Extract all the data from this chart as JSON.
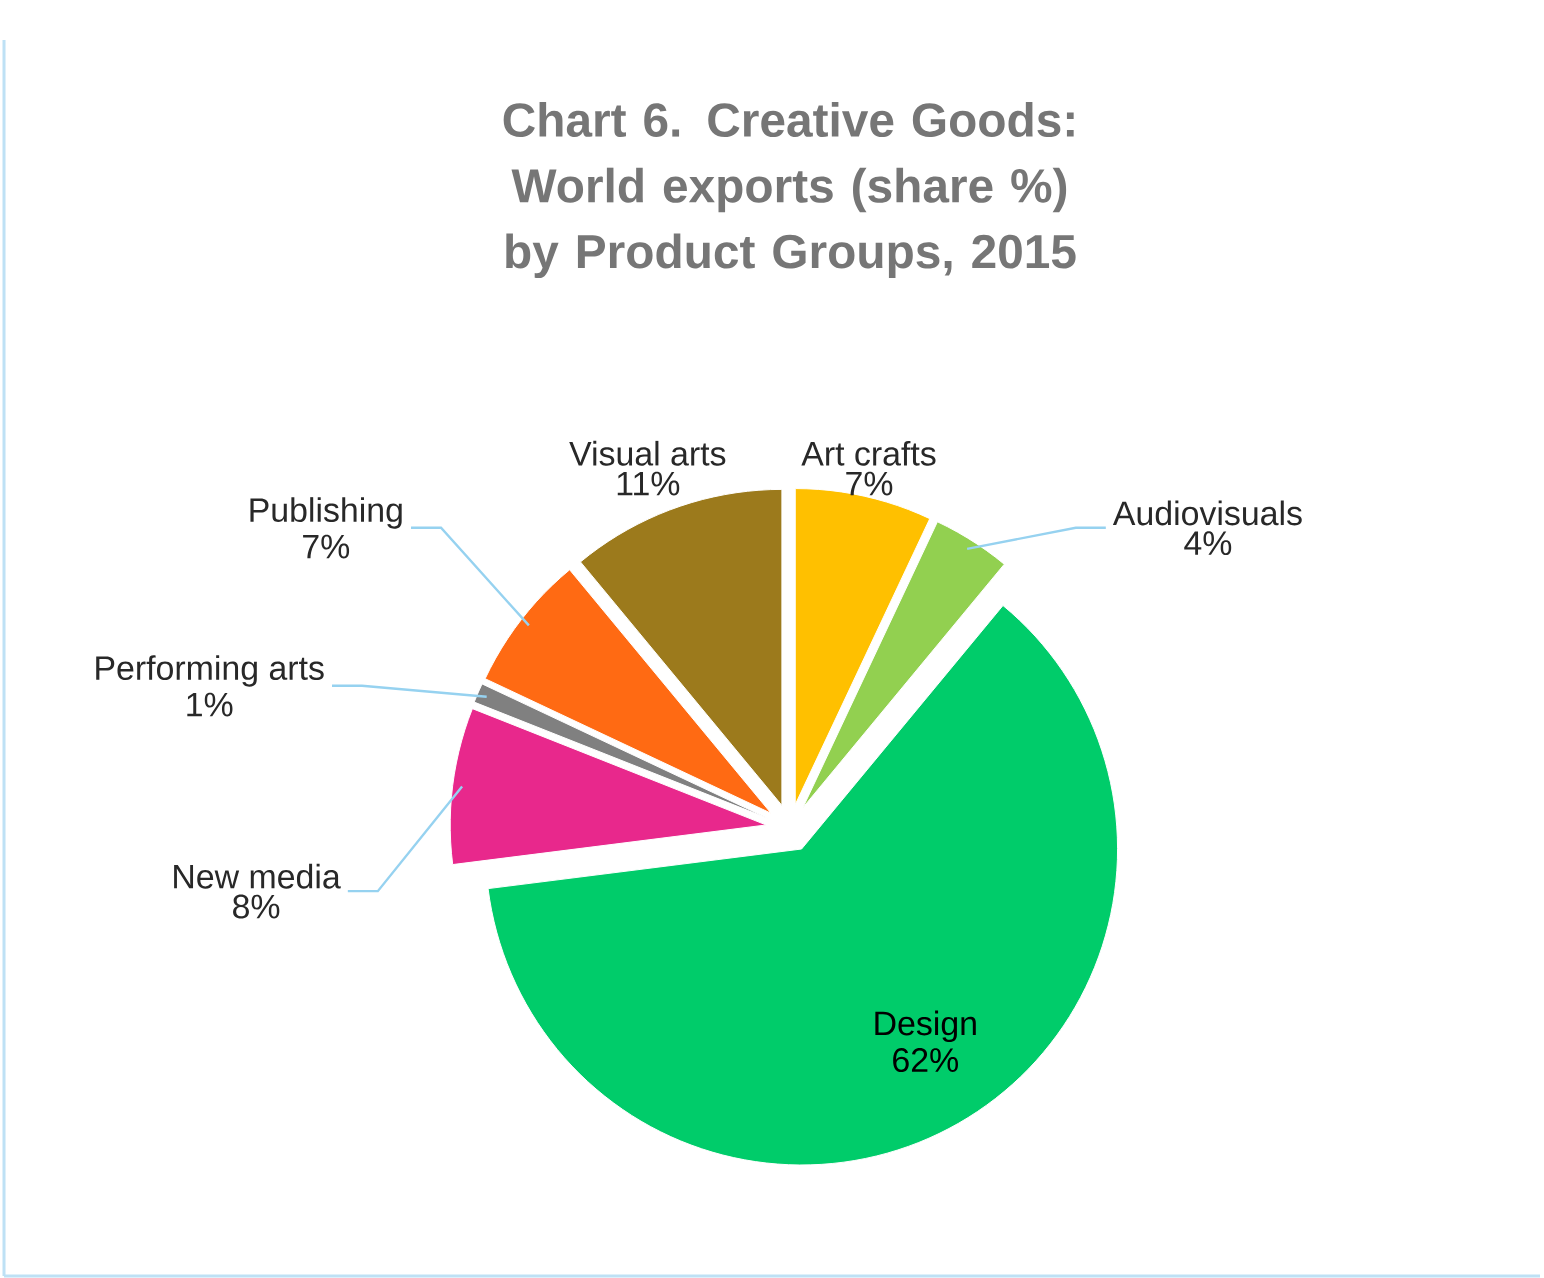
{
  "chart_data": {
    "type": "pie",
    "title": "Chart 6.  Creative Goods: World exports (share %) by Product Groups, 2015",
    "categories": [
      "Art crafts",
      "Audiovisuals",
      "Design",
      "New media",
      "Performing arts",
      "Publishing",
      "Visual arts"
    ],
    "values": [
      7,
      4,
      62,
      8,
      1,
      7,
      11
    ],
    "colors": [
      "#ffc000",
      "#92d050",
      "#00cc6a",
      "#e8288c",
      "#808080",
      "#ff6a13",
      "#9c7a1c"
    ],
    "value_labels": [
      "7%",
      "4%",
      "62%",
      "8%",
      "1%",
      "7%",
      "11%"
    ]
  }
}
